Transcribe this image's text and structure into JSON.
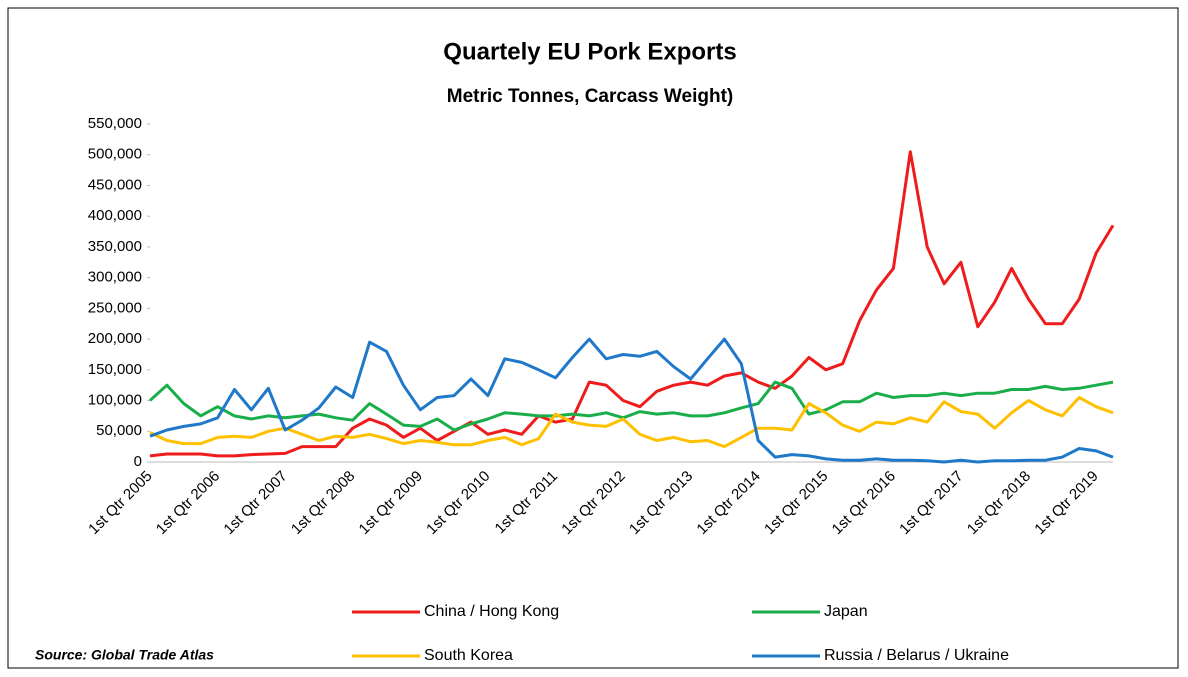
{
  "chart_data": {
    "type": "line",
    "title": "Quartely EU Pork Exports",
    "subtitle": "Metric Tonnes, Carcass Weight)",
    "source": "Source: Global Trade Atlas",
    "categories": [
      "1st Qtr 2005",
      null,
      null,
      null,
      "1st Qtr 2006",
      null,
      null,
      null,
      "1st Qtr 2007",
      null,
      null,
      null,
      "1st Qtr 2008",
      null,
      null,
      null,
      "1st Qtr 2009",
      null,
      null,
      null,
      "1st Qtr 2010",
      null,
      null,
      null,
      "1st Qtr 2011",
      null,
      null,
      null,
      "1st Qtr 2012",
      null,
      null,
      null,
      "1st Qtr 2013",
      null,
      null,
      null,
      "1st Qtr 2014",
      null,
      null,
      null,
      "1st Qtr 2015",
      null,
      null,
      null,
      "1st Qtr 2016",
      null,
      null,
      null,
      "1st Qtr 2017",
      null,
      null,
      null,
      "1st Qtr 2018",
      null,
      null,
      null,
      "1st Qtr 2019",
      null
    ],
    "ylim": [
      0,
      550000
    ],
    "yticks": [
      0,
      {
        "value": 50000,
        "label": "50,000"
      },
      {
        "value": 100000,
        "label": "100,000"
      },
      {
        "value": 150000,
        "label": "150,000"
      },
      {
        "value": 200000,
        "label": "200,000"
      },
      {
        "value": 250000,
        "label": "250,000"
      },
      {
        "value": 300000,
        "label": "300,000"
      },
      {
        "value": 350000,
        "label": "350,000"
      },
      {
        "value": 400000,
        "label": "400,000"
      },
      {
        "value": 450000,
        "label": "450,000"
      },
      {
        "value": 500000,
        "label": "500,000"
      },
      {
        "value": 550000,
        "label": "550,000"
      }
    ],
    "grid": false,
    "series": [
      {
        "name": "China / Hong Kong",
        "color": "#ee1c1c",
        "values": [
          10000,
          13000,
          13000,
          13000,
          10000,
          10000,
          12000,
          13000,
          14000,
          25000,
          25000,
          25000,
          55000,
          70000,
          60000,
          40000,
          55000,
          35000,
          50000,
          65000,
          45000,
          52000,
          45000,
          75000,
          65000,
          70000,
          130000,
          125000,
          100000,
          90000,
          115000,
          125000,
          130000,
          125000,
          140000,
          145000,
          130000,
          120000,
          140000,
          170000,
          150000,
          160000,
          230000,
          280000,
          315000,
          505000,
          350000,
          290000,
          325000,
          220000,
          260000,
          315000,
          265000,
          225000,
          225000,
          265000,
          340000,
          385000
        ]
      },
      {
        "name": "Japan",
        "color": "#1aae4a",
        "values": [
          100000,
          125000,
          95000,
          75000,
          90000,
          75000,
          70000,
          75000,
          72000,
          75000,
          78000,
          72000,
          68000,
          95000,
          78000,
          60000,
          58000,
          70000,
          52000,
          62000,
          70000,
          80000,
          78000,
          75000,
          75000,
          78000,
          75000,
          80000,
          72000,
          82000,
          78000,
          80000,
          75000,
          75000,
          80000,
          88000,
          95000,
          130000,
          120000,
          78000,
          85000,
          98000,
          98000,
          112000,
          105000,
          108000,
          108000,
          112000,
          108000,
          112000,
          112000,
          118000,
          118000,
          123000,
          118000,
          120000,
          125000,
          130000
        ]
      },
      {
        "name": "South Korea",
        "color": "#ffc000",
        "values": [
          48000,
          35000,
          30000,
          30000,
          40000,
          42000,
          40000,
          50000,
          55000,
          45000,
          35000,
          42000,
          40000,
          45000,
          38000,
          30000,
          35000,
          32000,
          28000,
          28000,
          35000,
          40000,
          28000,
          38000,
          78000,
          65000,
          60000,
          58000,
          70000,
          45000,
          35000,
          40000,
          33000,
          35000,
          25000,
          40000,
          55000,
          55000,
          52000,
          95000,
          80000,
          60000,
          50000,
          65000,
          62000,
          72000,
          65000,
          98000,
          82000,
          78000,
          55000,
          80000,
          100000,
          85000,
          75000,
          105000,
          90000,
          80000
        ]
      },
      {
        "name": "Russia / Belarus / Ukraine",
        "color": "#1f78c8",
        "values": [
          42000,
          52000,
          58000,
          62000,
          72000,
          118000,
          85000,
          120000,
          52000,
          68000,
          88000,
          122000,
          105000,
          195000,
          180000,
          125000,
          85000,
          105000,
          108000,
          135000,
          108000,
          168000,
          162000,
          150000,
          137000,
          170000,
          200000,
          168000,
          175000,
          172000,
          180000,
          155000,
          135000,
          168000,
          200000,
          160000,
          35000,
          8000,
          12000,
          10000,
          5000,
          3000,
          3000,
          5000,
          3000,
          3000,
          2000,
          0,
          3000,
          0,
          2000,
          2000,
          3000,
          3000,
          8000,
          22000,
          18000,
          8000
        ]
      }
    ]
  }
}
